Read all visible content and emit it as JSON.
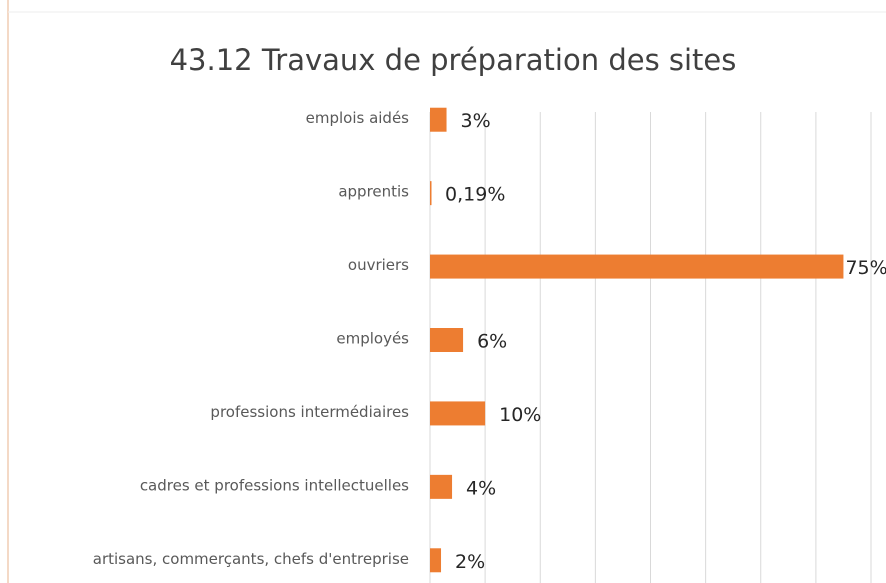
{
  "chart_data": {
    "type": "bar",
    "orientation": "horizontal",
    "title": "43.12 Travaux de préparation des sites",
    "categories": [
      "emplois aidés",
      "apprentis",
      "ouvriers",
      "employés",
      "professions intermédiaires",
      "cadres et professions intellectuelles",
      "artisans, commerçants, chefs d'entreprise"
    ],
    "values": [
      3,
      0.19,
      75,
      6,
      10,
      4,
      2
    ],
    "value_labels": [
      "3%",
      "0,19%",
      "75%",
      "6%",
      "10%",
      "4%",
      "2%"
    ],
    "color": "#ed7d31",
    "xlim": [
      0,
      80
    ],
    "xticks": [
      0,
      10,
      20,
      30,
      40,
      50,
      60,
      70,
      80
    ],
    "grid": true
  }
}
